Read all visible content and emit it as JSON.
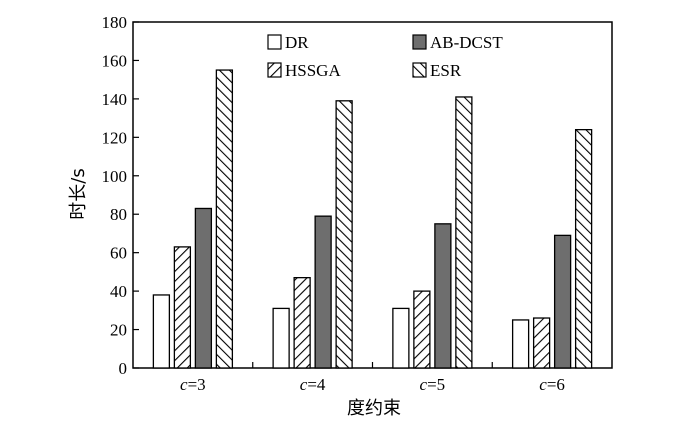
{
  "chart_data": {
    "type": "bar",
    "categories": [
      {
        "var": "c",
        "rest": "=3"
      },
      {
        "var": "c",
        "rest": "=4"
      },
      {
        "var": "c",
        "rest": "=5"
      },
      {
        "var": "c",
        "rest": "=6"
      }
    ],
    "series": [
      {
        "name": "DR",
        "values": [
          38,
          31,
          31,
          25
        ],
        "fill": "white"
      },
      {
        "name": "HSSGA",
        "values": [
          63,
          47,
          40,
          26
        ],
        "fill": "hatch-up"
      },
      {
        "name": "AB-DCST",
        "values": [
          83,
          79,
          75,
          69
        ],
        "fill": "gray"
      },
      {
        "name": "ESR",
        "values": [
          155,
          139,
          141,
          124
        ],
        "fill": "hatch-down"
      }
    ],
    "legend_order": [
      "DR",
      "AB-DCST",
      "HSSGA",
      "ESR"
    ],
    "legend_position": "top",
    "xlabel": "度约束",
    "ylabel": "时长/s",
    "ylim": [
      0,
      180
    ],
    "yticks": [
      0,
      20,
      40,
      60,
      80,
      100,
      120,
      140,
      160,
      180
    ],
    "grid": false,
    "colors": {
      "gray": "#6e6e6e",
      "stroke": "#000000",
      "white": "#ffffff"
    }
  }
}
